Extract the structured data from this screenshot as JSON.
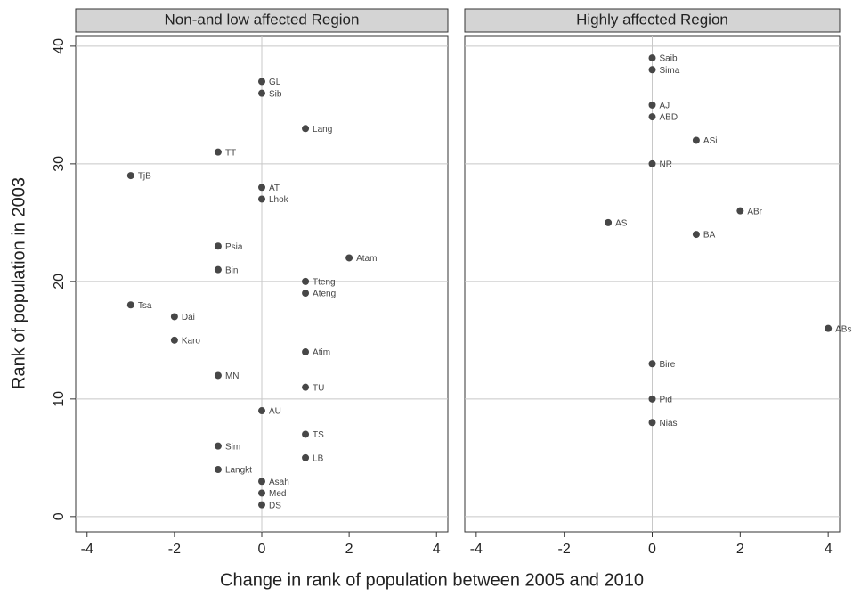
{
  "chart_data": [
    {
      "type": "scatter",
      "title": "Non-and low affected Region",
      "xlabel": "Change in rank of population between 2005 and 2010",
      "ylabel": "Rank of population in 2003",
      "color": "#474747",
      "xlim": [
        -4.26,
        4.26
      ],
      "ylim": [
        -1.3,
        40.9
      ],
      "xticks": [
        -4,
        -2,
        0,
        2,
        4
      ],
      "yticks": [
        0,
        10,
        20,
        30,
        40
      ],
      "grid": true,
      "xline": 0,
      "x": [
        0,
        0,
        1,
        -1,
        -3,
        0,
        0,
        -1,
        2,
        -1,
        1,
        1,
        -3,
        -2,
        -2,
        1,
        -1,
        1,
        0,
        1,
        -1,
        1,
        -1,
        0,
        0,
        0
      ],
      "y": [
        37,
        36,
        33,
        31,
        29,
        28,
        27,
        23,
        22,
        21,
        20,
        19,
        18,
        17,
        15,
        14,
        12,
        11,
        9,
        7,
        6,
        5,
        4,
        3,
        2,
        1
      ],
      "labels": [
        "GL",
        "Sib",
        "Lang",
        "TT",
        "TjB",
        "AT",
        "Lhok",
        "Psia",
        "Atam",
        "Bin",
        "Tteng",
        "Ateng",
        "Tsa",
        "Dai",
        "Karo",
        "Atim",
        "MN",
        "TU",
        "AU",
        "TS",
        "Sim",
        "LB",
        "Langkt",
        "Asah",
        "Med",
        "DS"
      ]
    },
    {
      "type": "scatter",
      "title": "Highly affected Region",
      "color": "#474747",
      "xlim": [
        -4.26,
        4.26
      ],
      "ylim": [
        -1.3,
        40.9
      ],
      "xticks": [
        -4,
        -2,
        0,
        2,
        4
      ],
      "yticks": [
        0,
        10,
        20,
        30,
        40
      ],
      "grid": true,
      "xline": 0,
      "x": [
        0,
        0,
        0,
        0,
        1,
        0,
        2,
        -1,
        1,
        4,
        0,
        0,
        0
      ],
      "y": [
        39,
        38,
        35,
        34,
        32,
        30,
        26,
        25,
        24,
        16,
        13,
        10,
        8
      ],
      "labels": [
        "Saib",
        "Sima",
        "AJ",
        "ABD",
        "ASi",
        "NR",
        "ABr",
        "AS",
        "BA",
        "ABs",
        "Bire",
        "Pid",
        "Nias"
      ]
    }
  ]
}
